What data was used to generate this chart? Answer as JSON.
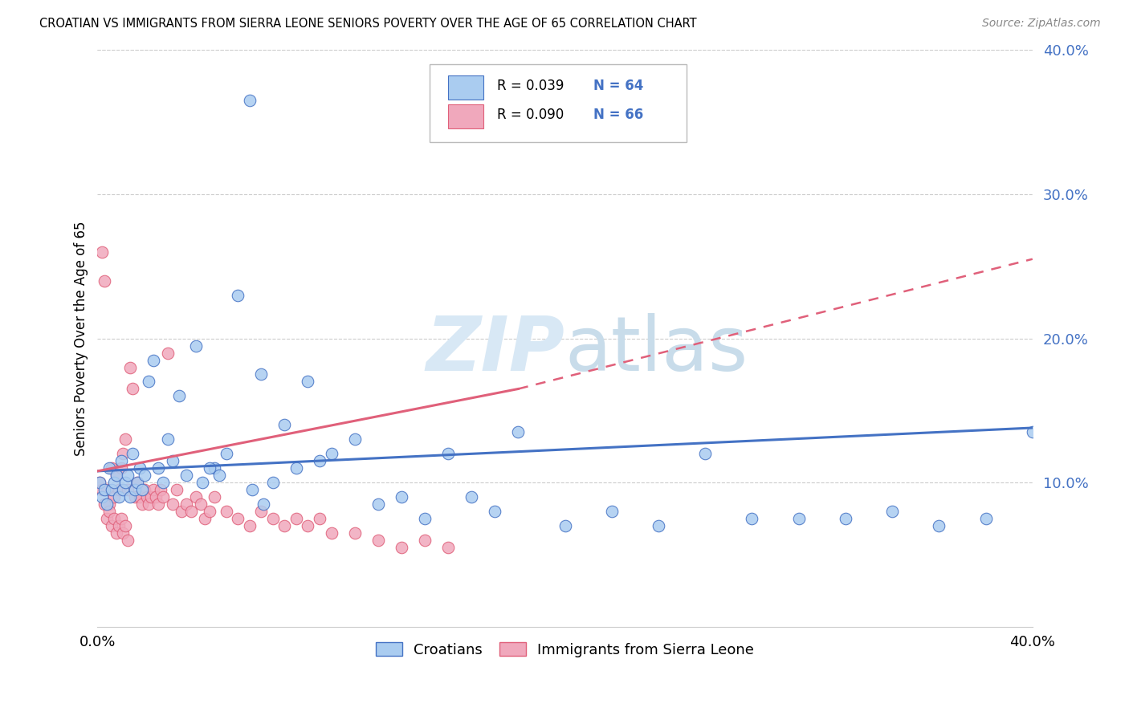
{
  "title": "CROATIAN VS IMMIGRANTS FROM SIERRA LEONE SENIORS POVERTY OVER THE AGE OF 65 CORRELATION CHART",
  "source": "Source: ZipAtlas.com",
  "ylabel": "Seniors Poverty Over the Age of 65",
  "xlim": [
    0,
    0.4
  ],
  "ylim": [
    0,
    0.4
  ],
  "yticks": [
    0.1,
    0.2,
    0.3,
    0.4
  ],
  "ytick_labels": [
    "10.0%",
    "20.0%",
    "30.0%",
    "40.0%"
  ],
  "legend_labels": [
    "Croatians",
    "Immigrants from Sierra Leone"
  ],
  "r_blue": 0.039,
  "n_blue": 64,
  "r_pink": 0.09,
  "n_pink": 66,
  "color_blue": "#aaccf0",
  "color_pink": "#f0a8bc",
  "line_blue": "#4472c4",
  "line_pink": "#e0607a",
  "watermark_color": "#d8e8f5",
  "blue_x": [
    0.001,
    0.002,
    0.003,
    0.004,
    0.005,
    0.006,
    0.007,
    0.008,
    0.009,
    0.01,
    0.011,
    0.012,
    0.013,
    0.014,
    0.015,
    0.016,
    0.017,
    0.018,
    0.019,
    0.02,
    0.022,
    0.024,
    0.026,
    0.028,
    0.03,
    0.032,
    0.035,
    0.038,
    0.042,
    0.045,
    0.05,
    0.055,
    0.06,
    0.065,
    0.07,
    0.075,
    0.08,
    0.085,
    0.09,
    0.095,
    0.1,
    0.11,
    0.12,
    0.13,
    0.14,
    0.15,
    0.16,
    0.17,
    0.18,
    0.2,
    0.22,
    0.24,
    0.26,
    0.28,
    0.3,
    0.32,
    0.34,
    0.36,
    0.38,
    0.4,
    0.066,
    0.071,
    0.052,
    0.048
  ],
  "blue_y": [
    0.1,
    0.09,
    0.095,
    0.085,
    0.11,
    0.095,
    0.1,
    0.105,
    0.09,
    0.115,
    0.095,
    0.1,
    0.105,
    0.09,
    0.12,
    0.095,
    0.1,
    0.11,
    0.095,
    0.105,
    0.17,
    0.185,
    0.11,
    0.1,
    0.13,
    0.115,
    0.16,
    0.105,
    0.195,
    0.1,
    0.11,
    0.12,
    0.23,
    0.365,
    0.175,
    0.1,
    0.14,
    0.11,
    0.17,
    0.115,
    0.12,
    0.13,
    0.085,
    0.09,
    0.075,
    0.12,
    0.09,
    0.08,
    0.135,
    0.07,
    0.08,
    0.07,
    0.12,
    0.075,
    0.075,
    0.075,
    0.08,
    0.07,
    0.075,
    0.135,
    0.095,
    0.085,
    0.105,
    0.11
  ],
  "pink_x": [
    0.001,
    0.002,
    0.003,
    0.004,
    0.005,
    0.006,
    0.007,
    0.008,
    0.009,
    0.01,
    0.011,
    0.012,
    0.013,
    0.014,
    0.015,
    0.016,
    0.017,
    0.018,
    0.019,
    0.02,
    0.021,
    0.022,
    0.023,
    0.024,
    0.025,
    0.026,
    0.027,
    0.028,
    0.03,
    0.032,
    0.034,
    0.036,
    0.038,
    0.04,
    0.042,
    0.044,
    0.046,
    0.048,
    0.05,
    0.055,
    0.06,
    0.065,
    0.07,
    0.075,
    0.08,
    0.085,
    0.09,
    0.095,
    0.1,
    0.11,
    0.12,
    0.13,
    0.14,
    0.15,
    0.002,
    0.003,
    0.004,
    0.005,
    0.006,
    0.007,
    0.008,
    0.009,
    0.01,
    0.011,
    0.012,
    0.013
  ],
  "pink_y": [
    0.1,
    0.26,
    0.24,
    0.095,
    0.085,
    0.11,
    0.09,
    0.105,
    0.095,
    0.11,
    0.12,
    0.13,
    0.095,
    0.18,
    0.165,
    0.09,
    0.1,
    0.09,
    0.085,
    0.095,
    0.09,
    0.085,
    0.09,
    0.095,
    0.09,
    0.085,
    0.095,
    0.09,
    0.19,
    0.085,
    0.095,
    0.08,
    0.085,
    0.08,
    0.09,
    0.085,
    0.075,
    0.08,
    0.09,
    0.08,
    0.075,
    0.07,
    0.08,
    0.075,
    0.07,
    0.075,
    0.07,
    0.075,
    0.065,
    0.065,
    0.06,
    0.055,
    0.06,
    0.055,
    0.095,
    0.085,
    0.075,
    0.08,
    0.07,
    0.075,
    0.065,
    0.07,
    0.075,
    0.065,
    0.07,
    0.06
  ],
  "blue_line_x0": 0.0,
  "blue_line_x1": 0.4,
  "blue_line_y0": 0.108,
  "blue_line_y1": 0.138,
  "pink_line_x0": 0.0,
  "pink_line_solid_x1": 0.18,
  "pink_line_x1": 0.4,
  "pink_line_y0": 0.108,
  "pink_line_y_solid_end": 0.165,
  "pink_line_y1": 0.255
}
